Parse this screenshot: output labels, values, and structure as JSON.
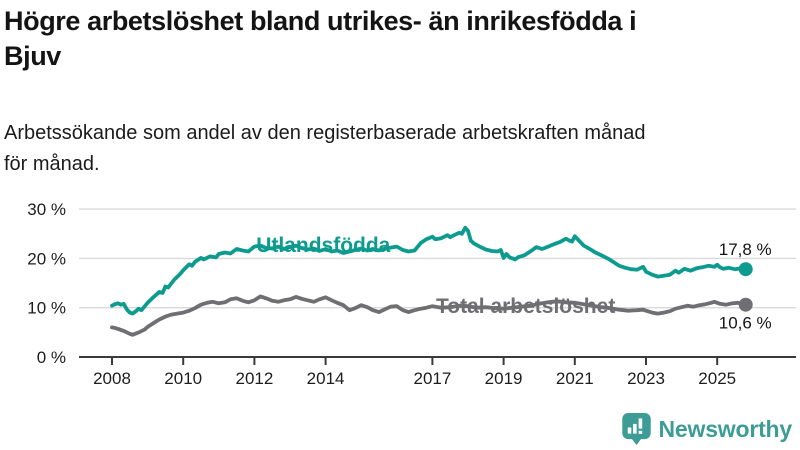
{
  "header": {
    "title_lines": [
      "Högre arbetslöshet bland utrikes- än inrikesfödda i",
      "Bjuv"
    ],
    "subtitle_lines": [
      "Arbetssökande som andel av den registerbaserade arbetskraften månad",
      "för månad."
    ]
  },
  "chart_data": {
    "type": "line",
    "title": "Högre arbetslöshet bland utrikes- än inrikesfödda i Bjuv",
    "subtitle": "Arbetssökande som andel av den registerbaserade arbetskraften månad för månad.",
    "xlabel": "",
    "ylabel": "",
    "ylim": [
      0,
      30
    ],
    "xlim": [
      2007.1,
      2026.2
    ],
    "grid": "horizontal",
    "legend_position": "inline-labels",
    "colors": {
      "grid": "#d9d9d9",
      "axis": "#3a3a3a"
    },
    "x_ticks": [
      {
        "v": 2008,
        "label": "2008"
      },
      {
        "v": 2010,
        "label": "2010"
      },
      {
        "v": 2012,
        "label": "2012"
      },
      {
        "v": 2014,
        "label": "2014"
      },
      {
        "v": 2017,
        "label": "2017"
      },
      {
        "v": 2019,
        "label": "2019"
      },
      {
        "v": 2021,
        "label": "2021"
      },
      {
        "v": 2023,
        "label": "2023"
      },
      {
        "v": 2025,
        "label": "2025"
      }
    ],
    "y_ticks": [
      {
        "v": 0,
        "label": "0 %"
      },
      {
        "v": 10,
        "label": "10 %"
      },
      {
        "v": 20,
        "label": "20 %"
      },
      {
        "v": 30,
        "label": "30 %"
      }
    ],
    "series": [
      {
        "id": "utlandsfodda",
        "name": "Utlandsfödda",
        "color": "#0d9b8f",
        "label_x": 2012.05,
        "label_y": 21.3,
        "end_value": 17.8,
        "end_label": "17,8 %",
        "end_label_above": true,
        "points": [
          [
            2008.0,
            10.4
          ],
          [
            2008.08,
            10.7
          ],
          [
            2008.17,
            10.9
          ],
          [
            2008.25,
            10.6
          ],
          [
            2008.33,
            10.8
          ],
          [
            2008.42,
            9.6
          ],
          [
            2008.5,
            9.0
          ],
          [
            2008.58,
            8.8
          ],
          [
            2008.67,
            9.3
          ],
          [
            2008.75,
            9.8
          ],
          [
            2008.83,
            9.5
          ],
          [
            2008.92,
            10.3
          ],
          [
            2009.0,
            11.0
          ],
          [
            2009.17,
            12.2
          ],
          [
            2009.33,
            13.2
          ],
          [
            2009.42,
            13.0
          ],
          [
            2009.5,
            14.3
          ],
          [
            2009.58,
            14.1
          ],
          [
            2009.75,
            15.7
          ],
          [
            2009.92,
            16.9
          ],
          [
            2010.0,
            17.6
          ],
          [
            2010.17,
            18.8
          ],
          [
            2010.25,
            18.5
          ],
          [
            2010.33,
            19.3
          ],
          [
            2010.5,
            20.1
          ],
          [
            2010.58,
            19.8
          ],
          [
            2010.75,
            20.4
          ],
          [
            2010.92,
            20.2
          ],
          [
            2011.0,
            20.9
          ],
          [
            2011.17,
            21.2
          ],
          [
            2011.33,
            21.0
          ],
          [
            2011.5,
            21.9
          ],
          [
            2011.67,
            21.6
          ],
          [
            2011.83,
            21.4
          ],
          [
            2012.0,
            22.4
          ],
          [
            2012.17,
            22.6
          ],
          [
            2012.33,
            22.1
          ],
          [
            2012.5,
            22.0
          ],
          [
            2012.67,
            22.4
          ],
          [
            2012.83,
            21.9
          ],
          [
            2013.0,
            22.3
          ],
          [
            2013.17,
            22.6
          ],
          [
            2013.33,
            22.1
          ],
          [
            2013.5,
            21.8
          ],
          [
            2013.67,
            22.0
          ],
          [
            2013.83,
            21.5
          ],
          [
            2014.0,
            21.9
          ],
          [
            2014.17,
            21.4
          ],
          [
            2014.33,
            21.6
          ],
          [
            2014.5,
            21.1
          ],
          [
            2014.67,
            21.4
          ],
          [
            2014.83,
            21.7
          ],
          [
            2015.0,
            22.0
          ],
          [
            2015.17,
            21.6
          ],
          [
            2015.33,
            21.9
          ],
          [
            2015.5,
            21.6
          ],
          [
            2015.67,
            22.0
          ],
          [
            2015.83,
            22.2
          ],
          [
            2016.0,
            22.4
          ],
          [
            2016.17,
            21.7
          ],
          [
            2016.33,
            21.4
          ],
          [
            2016.5,
            21.6
          ],
          [
            2016.67,
            23.1
          ],
          [
            2016.83,
            23.9
          ],
          [
            2017.0,
            24.4
          ],
          [
            2017.08,
            23.9
          ],
          [
            2017.25,
            24.1
          ],
          [
            2017.42,
            24.7
          ],
          [
            2017.5,
            24.3
          ],
          [
            2017.58,
            24.6
          ],
          [
            2017.75,
            25.2
          ],
          [
            2017.83,
            25.0
          ],
          [
            2017.92,
            26.2
          ],
          [
            2018.0,
            25.6
          ],
          [
            2018.08,
            23.6
          ],
          [
            2018.17,
            23.0
          ],
          [
            2018.33,
            22.4
          ],
          [
            2018.5,
            21.8
          ],
          [
            2018.67,
            21.5
          ],
          [
            2018.83,
            21.4
          ],
          [
            2018.92,
            21.7
          ],
          [
            2019.0,
            20.1
          ],
          [
            2019.08,
            20.9
          ],
          [
            2019.17,
            20.2
          ],
          [
            2019.33,
            19.8
          ],
          [
            2019.42,
            20.3
          ],
          [
            2019.58,
            20.6
          ],
          [
            2019.75,
            21.4
          ],
          [
            2019.92,
            22.3
          ],
          [
            2020.08,
            21.9
          ],
          [
            2020.25,
            22.4
          ],
          [
            2020.42,
            22.9
          ],
          [
            2020.58,
            23.3
          ],
          [
            2020.75,
            24.0
          ],
          [
            2020.83,
            23.7
          ],
          [
            2020.92,
            23.4
          ],
          [
            2021.0,
            24.5
          ],
          [
            2021.08,
            23.9
          ],
          [
            2021.25,
            22.6
          ],
          [
            2021.42,
            21.9
          ],
          [
            2021.58,
            21.2
          ],
          [
            2021.75,
            20.6
          ],
          [
            2021.92,
            20.0
          ],
          [
            2022.08,
            19.3
          ],
          [
            2022.25,
            18.5
          ],
          [
            2022.42,
            18.1
          ],
          [
            2022.58,
            17.8
          ],
          [
            2022.75,
            17.7
          ],
          [
            2022.92,
            18.3
          ],
          [
            2023.0,
            17.3
          ],
          [
            2023.17,
            16.7
          ],
          [
            2023.33,
            16.3
          ],
          [
            2023.5,
            16.5
          ],
          [
            2023.67,
            16.7
          ],
          [
            2023.83,
            17.5
          ],
          [
            2023.92,
            17.1
          ],
          [
            2024.08,
            17.9
          ],
          [
            2024.25,
            17.5
          ],
          [
            2024.42,
            18.0
          ],
          [
            2024.58,
            18.2
          ],
          [
            2024.75,
            18.5
          ],
          [
            2024.92,
            18.3
          ],
          [
            2025.0,
            18.7
          ],
          [
            2025.08,
            18.2
          ],
          [
            2025.17,
            17.9
          ],
          [
            2025.33,
            18.1
          ],
          [
            2025.5,
            17.8
          ],
          [
            2025.67,
            18.0
          ],
          [
            2025.8,
            17.8
          ]
        ]
      },
      {
        "id": "total",
        "name": "Total arbetslöshet",
        "color": "#6e6e73",
        "label_x": 2017.1,
        "label_y": 8.9,
        "end_value": 10.6,
        "end_label": "10,6 %",
        "end_label_above": false,
        "points": [
          [
            2008.0,
            6.0
          ],
          [
            2008.08,
            5.9
          ],
          [
            2008.17,
            5.7
          ],
          [
            2008.33,
            5.3
          ],
          [
            2008.5,
            4.7
          ],
          [
            2008.58,
            4.5
          ],
          [
            2008.75,
            5.0
          ],
          [
            2008.92,
            5.6
          ],
          [
            2009.0,
            6.1
          ],
          [
            2009.17,
            6.9
          ],
          [
            2009.33,
            7.6
          ],
          [
            2009.5,
            8.2
          ],
          [
            2009.67,
            8.6
          ],
          [
            2009.83,
            8.8
          ],
          [
            2010.0,
            9.0
          ],
          [
            2010.17,
            9.4
          ],
          [
            2010.33,
            9.9
          ],
          [
            2010.5,
            10.6
          ],
          [
            2010.67,
            11.0
          ],
          [
            2010.83,
            11.2
          ],
          [
            2011.0,
            10.9
          ],
          [
            2011.17,
            11.1
          ],
          [
            2011.33,
            11.7
          ],
          [
            2011.5,
            11.9
          ],
          [
            2011.67,
            11.4
          ],
          [
            2011.83,
            11.1
          ],
          [
            2012.0,
            11.5
          ],
          [
            2012.17,
            12.3
          ],
          [
            2012.33,
            11.9
          ],
          [
            2012.5,
            11.4
          ],
          [
            2012.67,
            11.2
          ],
          [
            2012.83,
            11.5
          ],
          [
            2013.0,
            11.7
          ],
          [
            2013.17,
            12.2
          ],
          [
            2013.33,
            11.8
          ],
          [
            2013.5,
            11.5
          ],
          [
            2013.67,
            11.2
          ],
          [
            2013.83,
            11.7
          ],
          [
            2014.0,
            12.1
          ],
          [
            2014.17,
            11.5
          ],
          [
            2014.33,
            11.0
          ],
          [
            2014.5,
            10.5
          ],
          [
            2014.67,
            9.5
          ],
          [
            2014.83,
            9.9
          ],
          [
            2015.0,
            10.5
          ],
          [
            2015.17,
            10.1
          ],
          [
            2015.33,
            9.5
          ],
          [
            2015.5,
            9.1
          ],
          [
            2015.67,
            9.7
          ],
          [
            2015.83,
            10.2
          ],
          [
            2016.0,
            10.3
          ],
          [
            2016.17,
            9.5
          ],
          [
            2016.33,
            9.1
          ],
          [
            2016.5,
            9.5
          ],
          [
            2016.67,
            9.8
          ],
          [
            2016.83,
            10.0
          ],
          [
            2017.0,
            10.3
          ],
          [
            2017.25,
            10.0
          ],
          [
            2017.5,
            10.1
          ],
          [
            2017.75,
            10.4
          ],
          [
            2018.0,
            10.3
          ],
          [
            2018.25,
            10.0
          ],
          [
            2018.5,
            10.1
          ],
          [
            2018.75,
            9.9
          ],
          [
            2019.0,
            9.8
          ],
          [
            2019.25,
            10.0
          ],
          [
            2019.5,
            10.2
          ],
          [
            2019.75,
            10.4
          ],
          [
            2020.0,
            10.8
          ],
          [
            2020.25,
            11.1
          ],
          [
            2020.5,
            11.3
          ],
          [
            2020.75,
            11.1
          ],
          [
            2021.0,
            11.0
          ],
          [
            2021.25,
            10.7
          ],
          [
            2021.5,
            10.4
          ],
          [
            2021.75,
            10.1
          ],
          [
            2022.0,
            9.9
          ],
          [
            2022.25,
            9.6
          ],
          [
            2022.5,
            9.4
          ],
          [
            2022.75,
            9.5
          ],
          [
            2022.92,
            9.6
          ],
          [
            2023.0,
            9.4
          ],
          [
            2023.17,
            9.0
          ],
          [
            2023.33,
            8.8
          ],
          [
            2023.5,
            9.0
          ],
          [
            2023.67,
            9.3
          ],
          [
            2023.83,
            9.8
          ],
          [
            2024.0,
            10.1
          ],
          [
            2024.17,
            10.4
          ],
          [
            2024.33,
            10.2
          ],
          [
            2024.5,
            10.5
          ],
          [
            2024.67,
            10.7
          ],
          [
            2024.83,
            11.0
          ],
          [
            2024.92,
            11.2
          ],
          [
            2025.08,
            10.8
          ],
          [
            2025.25,
            10.6
          ],
          [
            2025.42,
            10.9
          ],
          [
            2025.58,
            11.0
          ],
          [
            2025.8,
            10.6
          ]
        ]
      }
    ]
  },
  "footer": {
    "brand": "Newsworthy",
    "brand_color": "#3e9c96",
    "logo_icon": "bar-chart-speech-bubble-icon"
  }
}
